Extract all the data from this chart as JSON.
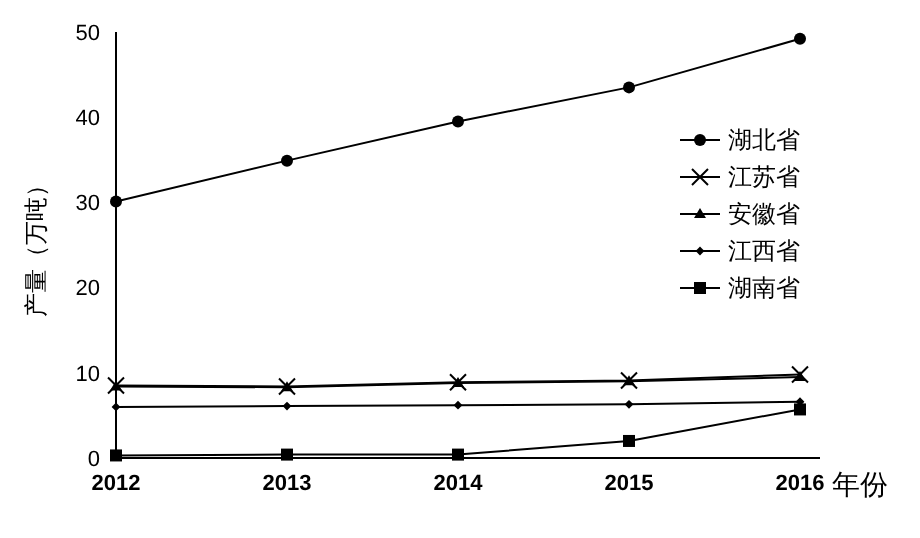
{
  "chart_data": {
    "type": "line",
    "ylabel": "产量（万吨）",
    "xlabel": "年份",
    "categories": [
      "2012",
      "2013",
      "2014",
      "2015",
      "2016"
    ],
    "ylim": [
      0,
      50
    ],
    "yticks": [
      0,
      10,
      20,
      30,
      40,
      50
    ],
    "grid": false,
    "legend": "right",
    "series": [
      {
        "name": "湖北省",
        "color": "#000000",
        "marker": "circle",
        "values": [
          30.1,
          34.9,
          39.5,
          43.5,
          49.2
        ]
      },
      {
        "name": "江苏省",
        "color": "#000000",
        "marker": "cross",
        "values": [
          8.5,
          8.4,
          8.9,
          9.1,
          9.8
        ]
      },
      {
        "name": "安徽省",
        "color": "#000000",
        "marker": "triangle",
        "values": [
          8.4,
          8.3,
          8.8,
          9.0,
          9.5
        ]
      },
      {
        "name": "江西省",
        "color": "#000000",
        "marker": "diamond",
        "values": [
          6.0,
          6.1,
          6.2,
          6.3,
          6.6
        ]
      },
      {
        "name": "湖南省",
        "color": "#000000",
        "marker": "square",
        "values": [
          0.3,
          0.4,
          0.4,
          2.0,
          5.7
        ]
      }
    ]
  }
}
